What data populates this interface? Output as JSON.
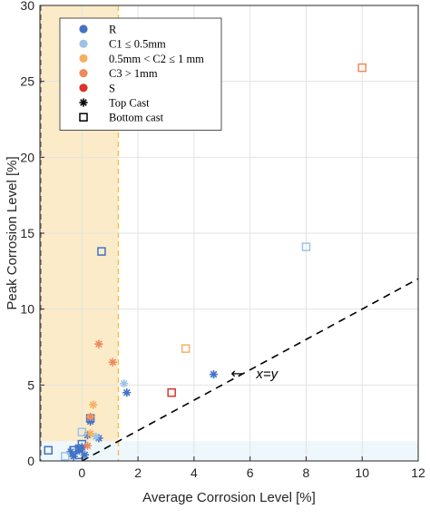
{
  "chart_data": {
    "type": "scatter",
    "xlabel": "Average Corrosion Level [%]",
    "ylabel": "Peak Corrosion Level [%]",
    "xlim": [
      -1.5,
      12
    ],
    "ylim": [
      0,
      30
    ],
    "xticks": [
      0,
      2,
      4,
      6,
      8,
      10,
      12
    ],
    "yticks": [
      0,
      5,
      10,
      15,
      20,
      25,
      30
    ],
    "grid": "on",
    "legend_position": "top-left",
    "legend": [
      {
        "label": "R",
        "marker": "dot",
        "color": "#4472C4"
      },
      {
        "label": "C1 ≤ 0.5mm",
        "marker": "dot",
        "color": "#9DC3E6"
      },
      {
        "label": "0.5mm < C2 ≤ 1 mm",
        "marker": "dot",
        "color": "#F4B063"
      },
      {
        "label": "C3 > 1mm",
        "marker": "dot",
        "color": "#EE8A5C"
      },
      {
        "label": "S",
        "marker": "dot",
        "color": "#D9352A"
      },
      {
        "label": "Top Cast",
        "marker": "asterisk",
        "color": "#000000"
      },
      {
        "label": "Bottom cast",
        "marker": "square",
        "color": "#000000"
      }
    ],
    "reference_line": {
      "label": "x=y",
      "arrow": "←",
      "label_x": 6.8,
      "label_y": 5.8,
      "from": [
        0,
        0
      ],
      "to": [
        12,
        12
      ]
    },
    "shaded_regions": [
      {
        "x": [
          -1.5,
          1.3
        ],
        "y": [
          0,
          30
        ],
        "color": "#FBEBC8"
      },
      {
        "x": [
          -1.5,
          12
        ],
        "y": [
          0,
          1.3
        ],
        "color": "#EEF7FB"
      }
    ],
    "series": [
      {
        "category": "R",
        "marker": "asterisk",
        "color": "#4472C4",
        "points": [
          [
            4.7,
            5.7
          ],
          [
            1.6,
            4.5
          ],
          [
            0.6,
            1.5
          ],
          [
            0.3,
            2.6
          ],
          [
            0.2,
            1.7
          ],
          [
            -0.1,
            0.7
          ],
          [
            -0.3,
            0.3
          ],
          [
            -0.4,
            0.6
          ],
          [
            0.0,
            0.9
          ],
          [
            0.1,
            0.4
          ]
        ]
      },
      {
        "category": "R",
        "marker": "square",
        "color": "#4472C4",
        "points": [
          [
            0.7,
            13.8
          ],
          [
            -1.2,
            0.7
          ],
          [
            -0.3,
            0.7
          ],
          [
            -0.1,
            0.4
          ],
          [
            -0.1,
            0.8
          ],
          [
            0.0,
            1.1
          ],
          [
            0.3,
            2.8
          ]
        ]
      },
      {
        "category": "C1",
        "marker": "asterisk",
        "color": "#9DC3E6",
        "points": [
          [
            1.5,
            5.1
          ],
          [
            0.5,
            1.6
          ]
        ]
      },
      {
        "category": "C1",
        "marker": "square",
        "color": "#9DC3E6",
        "points": [
          [
            8.0,
            14.1
          ],
          [
            -0.6,
            0.3
          ],
          [
            0.0,
            1.9
          ]
        ]
      },
      {
        "category": "C2",
        "marker": "asterisk",
        "color": "#F4B063",
        "points": [
          [
            0.4,
            3.7
          ],
          [
            0.3,
            1.8
          ]
        ]
      },
      {
        "category": "C2",
        "marker": "square",
        "color": "#F4B063",
        "points": [
          [
            3.7,
            7.4
          ]
        ]
      },
      {
        "category": "C3",
        "marker": "asterisk",
        "color": "#EE8A5C",
        "points": [
          [
            0.6,
            7.7
          ],
          [
            1.1,
            6.5
          ],
          [
            0.3,
            2.9
          ],
          [
            0.2,
            1.0
          ]
        ]
      },
      {
        "category": "C3",
        "marker": "square",
        "color": "#EE8A5C",
        "points": [
          [
            10.0,
            25.9
          ]
        ]
      },
      {
        "category": "S",
        "marker": "square",
        "color": "#D9352A",
        "points": [
          [
            3.2,
            4.5
          ]
        ]
      }
    ]
  }
}
